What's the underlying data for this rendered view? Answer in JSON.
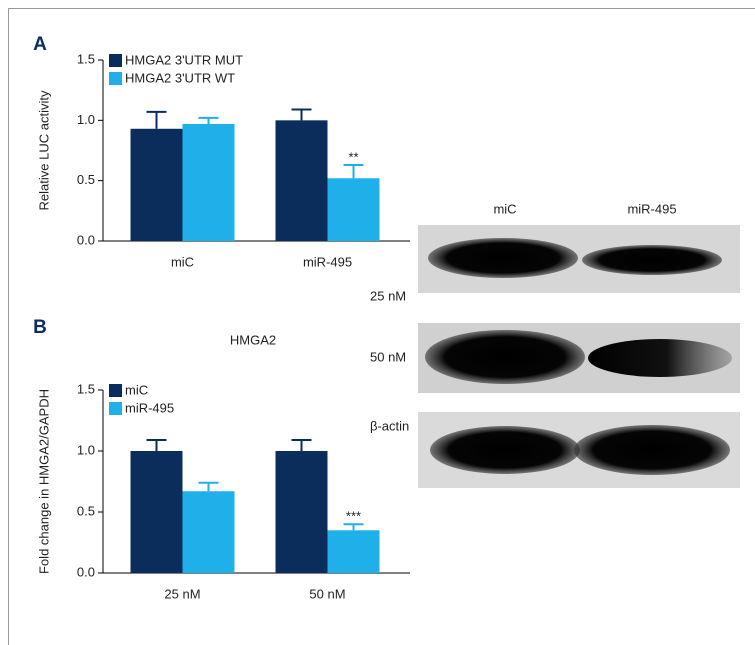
{
  "chart_data": [
    {
      "type": "bar",
      "panel": "A",
      "ylabel": "Relative LUC activity",
      "categories": [
        "miC",
        "miR-495"
      ],
      "series": [
        {
          "name": "HMGA2 3'UTR MUT",
          "color": "#0b2d5b",
          "values": [
            0.93,
            1.0
          ],
          "errors": [
            0.14,
            0.09
          ],
          "significance": [
            null,
            null
          ]
        },
        {
          "name": "HMGA2 3'UTR WT",
          "color": "#1fb0ea",
          "values": [
            0.97,
            0.52
          ],
          "errors": [
            0.05,
            0.11
          ],
          "significance": [
            null,
            "**"
          ]
        }
      ],
      "ylim": [
        0,
        1.5
      ],
      "yticks": [
        {
          "value": 0,
          "label": "0.0"
        },
        {
          "value": 0.5,
          "label": "0.5"
        },
        {
          "value": 1,
          "label": "1.0"
        },
        {
          "value": 1.5,
          "label": "1.5"
        }
      ]
    },
    {
      "type": "bar",
      "panel": "B",
      "title": "HMGA2",
      "ylabel": "Fold change in HMGA2/GAPDH",
      "categories": [
        "25 nM",
        "50 nM"
      ],
      "series": [
        {
          "name": "miC",
          "color": "#0b2d5b",
          "values": [
            1.0,
            1.0
          ],
          "errors": [
            0.09,
            0.09
          ],
          "significance": [
            null,
            null
          ]
        },
        {
          "name": "miR-495",
          "color": "#1fb0ea",
          "values": [
            0.67,
            0.35
          ],
          "errors": [
            0.07,
            0.05
          ],
          "significance": [
            null,
            "***"
          ]
        }
      ],
      "ylim": [
        0,
        1.5
      ],
      "yticks": [
        {
          "value": 0,
          "label": "0.0"
        },
        {
          "value": 0.5,
          "label": "0.5"
        },
        {
          "value": 1,
          "label": "1.0"
        },
        {
          "value": 1.5,
          "label": "1.5"
        }
      ]
    }
  ],
  "blot": {
    "columns": [
      "miC",
      "miR-495"
    ],
    "rows": [
      "25 nM",
      "50 nM",
      "β-actin"
    ]
  }
}
